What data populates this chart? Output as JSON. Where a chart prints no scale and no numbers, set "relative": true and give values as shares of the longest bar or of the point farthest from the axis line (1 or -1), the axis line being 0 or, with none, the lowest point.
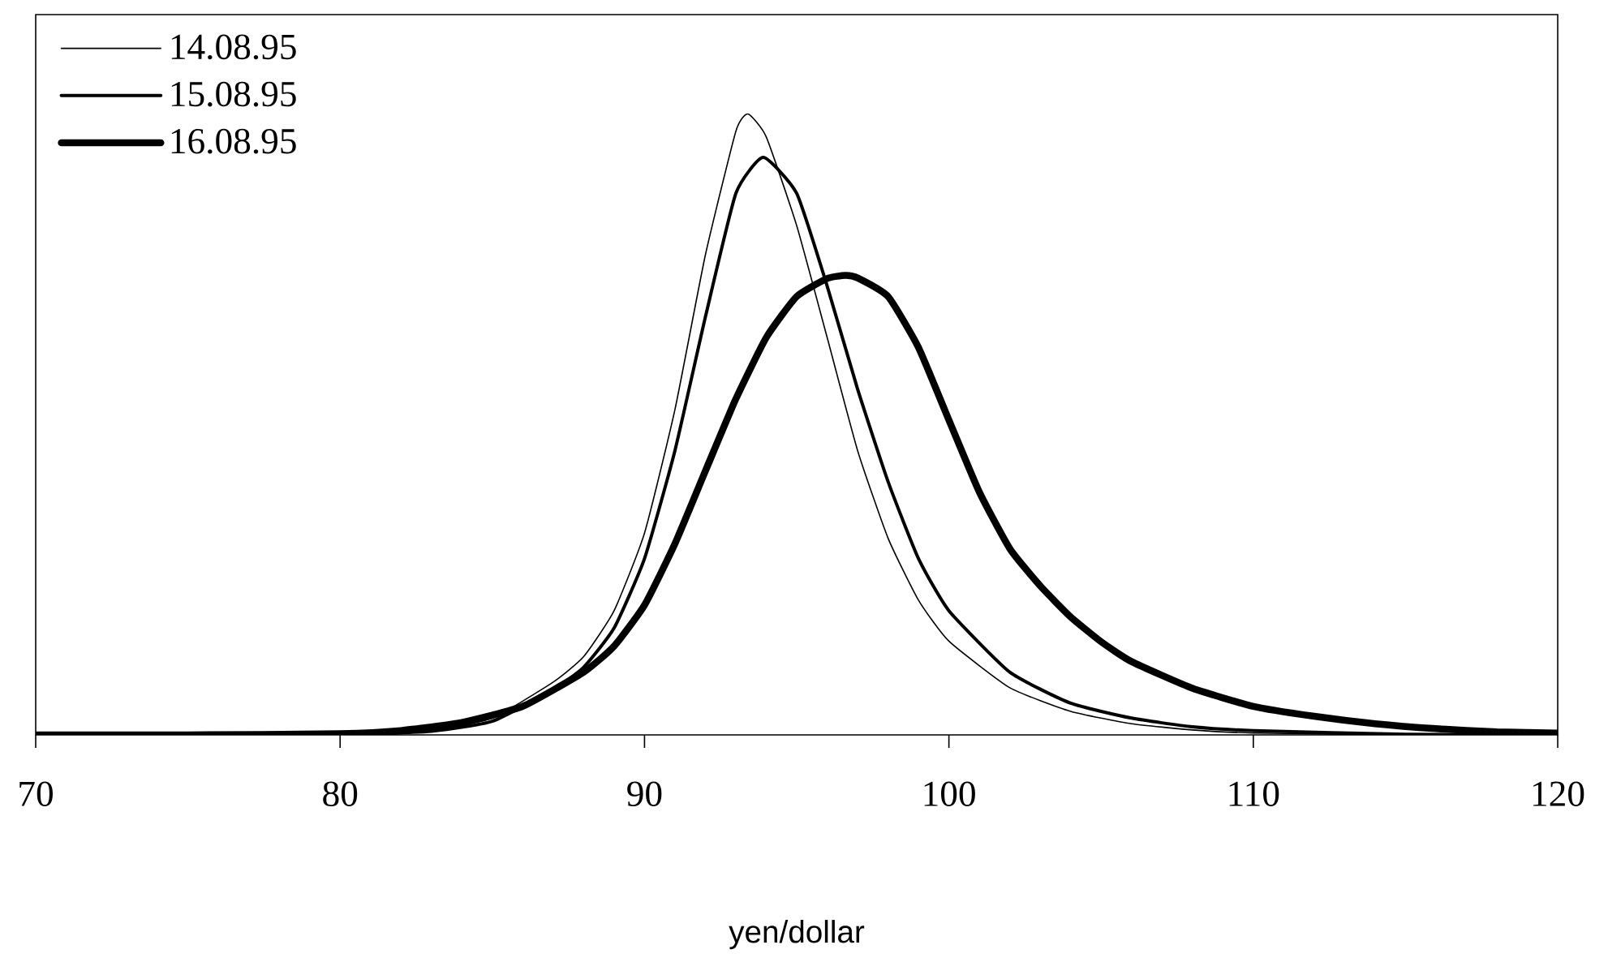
{
  "chart_data": {
    "type": "line",
    "xlabel": "yen/dollar",
    "relative": true,
    "xlim": [
      70,
      120
    ],
    "xticks": [
      70,
      80,
      90,
      100,
      110,
      120
    ],
    "tick_labels": "x",
    "grid": false,
    "legend": "top left",
    "marker": "none",
    "line_style": "solid",
    "series": [
      {
        "name": "14.08.95",
        "color": "#000000",
        "x": [
          70,
          75,
          80,
          83,
          85,
          87,
          88,
          89,
          90,
          91,
          92,
          93,
          93.4,
          94,
          95,
          96,
          97,
          98,
          99,
          100,
          102,
          104,
          106,
          108,
          110,
          115,
          120
        ],
        "values": [
          0,
          0,
          0,
          0.007,
          0.027,
          0.085,
          0.126,
          0.2,
          0.325,
          0.524,
          0.773,
          0.972,
          1,
          0.963,
          0.82,
          0.64,
          0.458,
          0.317,
          0.217,
          0.151,
          0.076,
          0.038,
          0.018,
          0.008,
          0.003,
          0,
          0
        ]
      },
      {
        "name": "15.08.95",
        "color": "#000000",
        "x": [
          70,
          75,
          80,
          83,
          85,
          87,
          88,
          89,
          90,
          91,
          92,
          93,
          93.9,
          95,
          96,
          97,
          98,
          99,
          100,
          102,
          104,
          106,
          108,
          110,
          115,
          120
        ],
        "values": [
          0,
          0,
          0,
          0.006,
          0.022,
          0.073,
          0.109,
          0.172,
          0.284,
          0.458,
          0.673,
          0.872,
          0.93,
          0.872,
          0.723,
          0.557,
          0.408,
          0.284,
          0.2,
          0.101,
          0.051,
          0.027,
          0.013,
          0.007,
          0.001,
          0
        ]
      },
      {
        "name": "16.08.95",
        "color": "#000000",
        "x": [
          70,
          75,
          80,
          82,
          84,
          86,
          88,
          89,
          90,
          91,
          92,
          93,
          94,
          95,
          96,
          96.6,
          97,
          98,
          99,
          100,
          101,
          102,
          103,
          104,
          105,
          106,
          108,
          110,
          112,
          114,
          116,
          118,
          120
        ],
        "values": [
          0,
          0,
          0.002,
          0.007,
          0.02,
          0.046,
          0.101,
          0.143,
          0.209,
          0.308,
          0.425,
          0.541,
          0.64,
          0.706,
          0.735,
          0.74,
          0.736,
          0.706,
          0.624,
          0.507,
          0.391,
          0.3,
          0.24,
          0.19,
          0.15,
          0.118,
          0.075,
          0.046,
          0.03,
          0.018,
          0.01,
          0.005,
          0.003
        ]
      }
    ]
  }
}
